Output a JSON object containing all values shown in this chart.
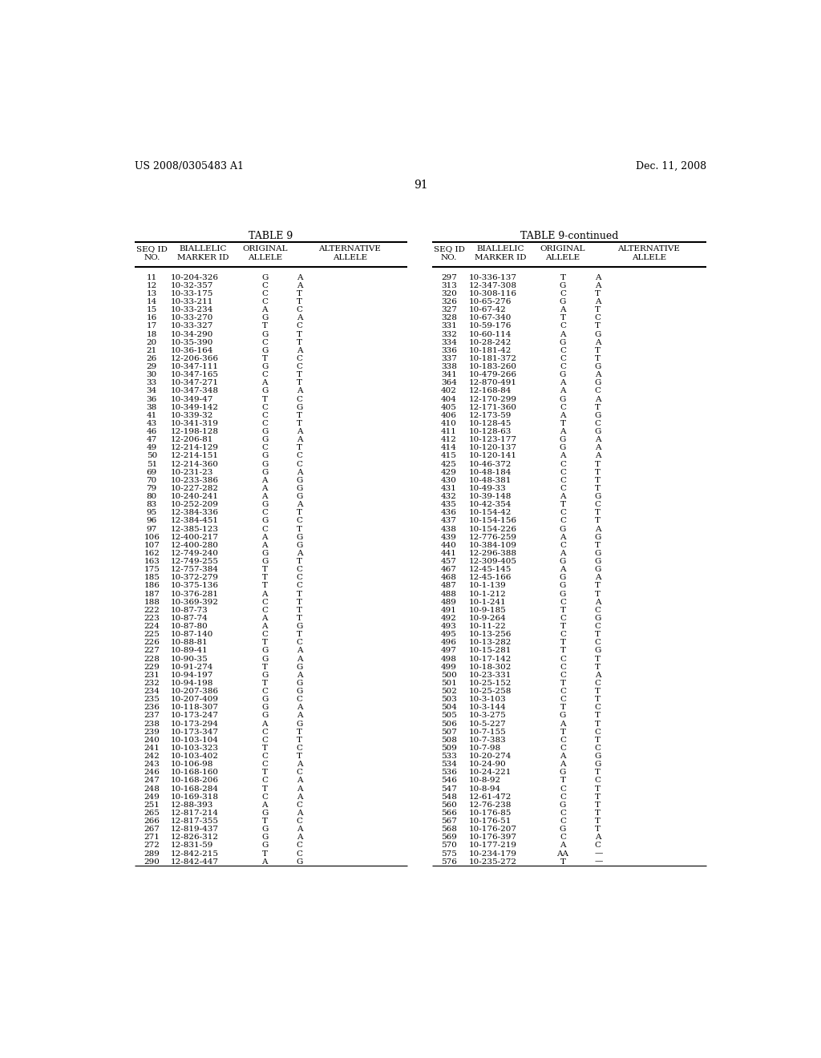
{
  "header_left": "US 2008/0305483 A1",
  "header_right": "Dec. 11, 2008",
  "page_number": "91",
  "table_title_left": "TABLE 9",
  "table_title_right": "TABLE 9-continued",
  "col_headers": [
    "SEQ ID\nNO.",
    "BIALLELIC\nMARKER ID",
    "ORIGINAL\nALLELE",
    "ALTERNATIVE\nALLELE"
  ],
  "left_data": [
    [
      "11",
      "10-204-326",
      "G",
      "A"
    ],
    [
      "12",
      "10-32-357",
      "C",
      "A"
    ],
    [
      "13",
      "10-33-175",
      "C",
      "T"
    ],
    [
      "14",
      "10-33-211",
      "C",
      "T"
    ],
    [
      "15",
      "10-33-234",
      "A",
      "C"
    ],
    [
      "16",
      "10-33-270",
      "G",
      "A"
    ],
    [
      "17",
      "10-33-327",
      "T",
      "C"
    ],
    [
      "18",
      "10-34-290",
      "G",
      "T"
    ],
    [
      "20",
      "10-35-390",
      "C",
      "T"
    ],
    [
      "21",
      "10-36-164",
      "G",
      "A"
    ],
    [
      "26",
      "12-206-366",
      "T",
      "C"
    ],
    [
      "29",
      "10-347-111",
      "G",
      "C"
    ],
    [
      "30",
      "10-347-165",
      "C",
      "T"
    ],
    [
      "33",
      "10-347-271",
      "A",
      "T"
    ],
    [
      "34",
      "10-347-348",
      "G",
      "A"
    ],
    [
      "36",
      "10-349-47",
      "T",
      "C"
    ],
    [
      "38",
      "10-349-142",
      "C",
      "G"
    ],
    [
      "41",
      "10-339-32",
      "C",
      "T"
    ],
    [
      "43",
      "10-341-319",
      "C",
      "T"
    ],
    [
      "46",
      "12-198-128",
      "G",
      "A"
    ],
    [
      "47",
      "12-206-81",
      "G",
      "A"
    ],
    [
      "49",
      "12-214-129",
      "C",
      "T"
    ],
    [
      "50",
      "12-214-151",
      "G",
      "C"
    ],
    [
      "51",
      "12-214-360",
      "G",
      "C"
    ],
    [
      "69",
      "10-231-23",
      "G",
      "A"
    ],
    [
      "70",
      "10-233-386",
      "A",
      "G"
    ],
    [
      "79",
      "10-227-282",
      "A",
      "G"
    ],
    [
      "80",
      "10-240-241",
      "A",
      "G"
    ],
    [
      "83",
      "10-252-209",
      "G",
      "A"
    ],
    [
      "95",
      "12-384-336",
      "C",
      "T"
    ],
    [
      "96",
      "12-384-451",
      "G",
      "C"
    ],
    [
      "97",
      "12-385-123",
      "C",
      "T"
    ],
    [
      "106",
      "12-400-217",
      "A",
      "G"
    ],
    [
      "107",
      "12-400-280",
      "A",
      "G"
    ],
    [
      "162",
      "12-749-240",
      "G",
      "A"
    ],
    [
      "163",
      "12-749-255",
      "G",
      "T"
    ],
    [
      "175",
      "12-757-384",
      "T",
      "C"
    ],
    [
      "185",
      "10-372-279",
      "T",
      "C"
    ],
    [
      "186",
      "10-375-136",
      "T",
      "C"
    ],
    [
      "187",
      "10-376-281",
      "A",
      "T"
    ],
    [
      "188",
      "10-369-392",
      "C",
      "T"
    ],
    [
      "222",
      "10-87-73",
      "C",
      "T"
    ],
    [
      "223",
      "10-87-74",
      "A",
      "T"
    ],
    [
      "224",
      "10-87-80",
      "A",
      "G"
    ],
    [
      "225",
      "10-87-140",
      "C",
      "T"
    ],
    [
      "226",
      "10-88-81",
      "T",
      "C"
    ],
    [
      "227",
      "10-89-41",
      "G",
      "A"
    ],
    [
      "228",
      "10-90-35",
      "G",
      "A"
    ],
    [
      "229",
      "10-91-274",
      "T",
      "G"
    ],
    [
      "231",
      "10-94-197",
      "G",
      "A"
    ],
    [
      "232",
      "10-94-198",
      "T",
      "G"
    ],
    [
      "234",
      "10-207-386",
      "C",
      "G"
    ],
    [
      "235",
      "10-207-409",
      "G",
      "C"
    ],
    [
      "236",
      "10-118-307",
      "G",
      "A"
    ],
    [
      "237",
      "10-173-247",
      "G",
      "A"
    ],
    [
      "238",
      "10-173-294",
      "A",
      "G"
    ],
    [
      "239",
      "10-173-347",
      "C",
      "T"
    ],
    [
      "240",
      "10-103-104",
      "C",
      "T"
    ],
    [
      "241",
      "10-103-323",
      "T",
      "C"
    ],
    [
      "242",
      "10-103-402",
      "C",
      "T"
    ],
    [
      "243",
      "10-106-98",
      "C",
      "A"
    ],
    [
      "246",
      "10-168-160",
      "T",
      "C"
    ],
    [
      "247",
      "10-168-206",
      "C",
      "A"
    ],
    [
      "248",
      "10-168-284",
      "T",
      "A"
    ],
    [
      "249",
      "10-169-318",
      "C",
      "A"
    ],
    [
      "251",
      "12-88-393",
      "A",
      "C"
    ],
    [
      "265",
      "12-817-214",
      "G",
      "A"
    ],
    [
      "266",
      "12-817-355",
      "T",
      "C"
    ],
    [
      "267",
      "12-819-437",
      "G",
      "A"
    ],
    [
      "271",
      "12-826-312",
      "G",
      "A"
    ],
    [
      "272",
      "12-831-59",
      "G",
      "C"
    ],
    [
      "289",
      "12-842-215",
      "T",
      "C"
    ],
    [
      "290",
      "12-842-447",
      "A",
      "G"
    ]
  ],
  "right_data": [
    [
      "297",
      "10-336-137",
      "T",
      "A"
    ],
    [
      "313",
      "12-347-308",
      "G",
      "A"
    ],
    [
      "320",
      "10-308-116",
      "C",
      "T"
    ],
    [
      "326",
      "10-65-276",
      "G",
      "A"
    ],
    [
      "327",
      "10-67-42",
      "A",
      "T"
    ],
    [
      "328",
      "10-67-340",
      "T",
      "C"
    ],
    [
      "331",
      "10-59-176",
      "C",
      "T"
    ],
    [
      "332",
      "10-60-114",
      "A",
      "G"
    ],
    [
      "334",
      "10-28-242",
      "G",
      "A"
    ],
    [
      "336",
      "10-181-42",
      "C",
      "T"
    ],
    [
      "337",
      "10-181-372",
      "C",
      "T"
    ],
    [
      "338",
      "10-183-260",
      "C",
      "G"
    ],
    [
      "341",
      "10-479-266",
      "G",
      "A"
    ],
    [
      "364",
      "12-870-491",
      "A",
      "G"
    ],
    [
      "402",
      "12-168-84",
      "A",
      "C"
    ],
    [
      "404",
      "12-170-299",
      "G",
      "A"
    ],
    [
      "405",
      "12-171-360",
      "C",
      "T"
    ],
    [
      "406",
      "12-173-59",
      "A",
      "G"
    ],
    [
      "410",
      "10-128-45",
      "T",
      "C"
    ],
    [
      "411",
      "10-128-63",
      "A",
      "G"
    ],
    [
      "412",
      "10-123-177",
      "G",
      "A"
    ],
    [
      "414",
      "10-120-137",
      "G",
      "A"
    ],
    [
      "415",
      "10-120-141",
      "A",
      "A"
    ],
    [
      "425",
      "10-46-372",
      "C",
      "T"
    ],
    [
      "429",
      "10-48-184",
      "C",
      "T"
    ],
    [
      "430",
      "10-48-381",
      "C",
      "T"
    ],
    [
      "431",
      "10-49-33",
      "C",
      "T"
    ],
    [
      "432",
      "10-39-148",
      "A",
      "G"
    ],
    [
      "435",
      "10-42-354",
      "T",
      "C"
    ],
    [
      "436",
      "10-154-42",
      "C",
      "T"
    ],
    [
      "437",
      "10-154-156",
      "C",
      "T"
    ],
    [
      "438",
      "10-154-226",
      "G",
      "A"
    ],
    [
      "439",
      "12-776-259",
      "A",
      "G"
    ],
    [
      "440",
      "10-384-109",
      "C",
      "T"
    ],
    [
      "441",
      "12-296-388",
      "A",
      "G"
    ],
    [
      "457",
      "12-309-405",
      "G",
      "G"
    ],
    [
      "467",
      "12-45-145",
      "A",
      "G"
    ],
    [
      "468",
      "12-45-166",
      "G",
      "A"
    ],
    [
      "487",
      "10-1-139",
      "G",
      "T"
    ],
    [
      "488",
      "10-1-212",
      "G",
      "T"
    ],
    [
      "489",
      "10-1-241",
      "C",
      "A"
    ],
    [
      "491",
      "10-9-185",
      "T",
      "C"
    ],
    [
      "492",
      "10-9-264",
      "C",
      "G"
    ],
    [
      "493",
      "10-11-22",
      "T",
      "C"
    ],
    [
      "495",
      "10-13-256",
      "C",
      "T"
    ],
    [
      "496",
      "10-13-282",
      "T",
      "C"
    ],
    [
      "497",
      "10-15-281",
      "T",
      "G"
    ],
    [
      "498",
      "10-17-142",
      "C",
      "T"
    ],
    [
      "499",
      "10-18-302",
      "C",
      "T"
    ],
    [
      "500",
      "10-23-331",
      "C",
      "A"
    ],
    [
      "501",
      "10-25-152",
      "T",
      "C"
    ],
    [
      "502",
      "10-25-258",
      "C",
      "T"
    ],
    [
      "503",
      "10-3-103",
      "C",
      "T"
    ],
    [
      "504",
      "10-3-144",
      "T",
      "C"
    ],
    [
      "505",
      "10-3-275",
      "G",
      "T"
    ],
    [
      "506",
      "10-5-227",
      "A",
      "T"
    ],
    [
      "507",
      "10-7-155",
      "T",
      "C"
    ],
    [
      "508",
      "10-7-383",
      "C",
      "T"
    ],
    [
      "509",
      "10-7-98",
      "C",
      "C"
    ],
    [
      "533",
      "10-20-274",
      "A",
      "G"
    ],
    [
      "534",
      "10-24-90",
      "A",
      "G"
    ],
    [
      "536",
      "10-24-221",
      "G",
      "T"
    ],
    [
      "546",
      "10-8-92",
      "T",
      "C"
    ],
    [
      "547",
      "10-8-94",
      "C",
      "T"
    ],
    [
      "548",
      "12-61-472",
      "C",
      "T"
    ],
    [
      "560",
      "12-76-238",
      "G",
      "T"
    ],
    [
      "566",
      "10-176-85",
      "C",
      "T"
    ],
    [
      "567",
      "10-176-51",
      "C",
      "T"
    ],
    [
      "568",
      "10-176-207",
      "G",
      "T"
    ],
    [
      "569",
      "10-176-397",
      "C",
      "A"
    ],
    [
      "570",
      "10-177-219",
      "A",
      "C"
    ],
    [
      "575",
      "10-234-179",
      "AA",
      "—"
    ],
    [
      "576",
      "10-235-272",
      "T",
      "—"
    ]
  ],
  "bg_color": "#ffffff",
  "text_color": "#000000",
  "font_size_header": 9,
  "font_size_data": 7.5,
  "font_size_title": 9,
  "font_size_page": 10
}
